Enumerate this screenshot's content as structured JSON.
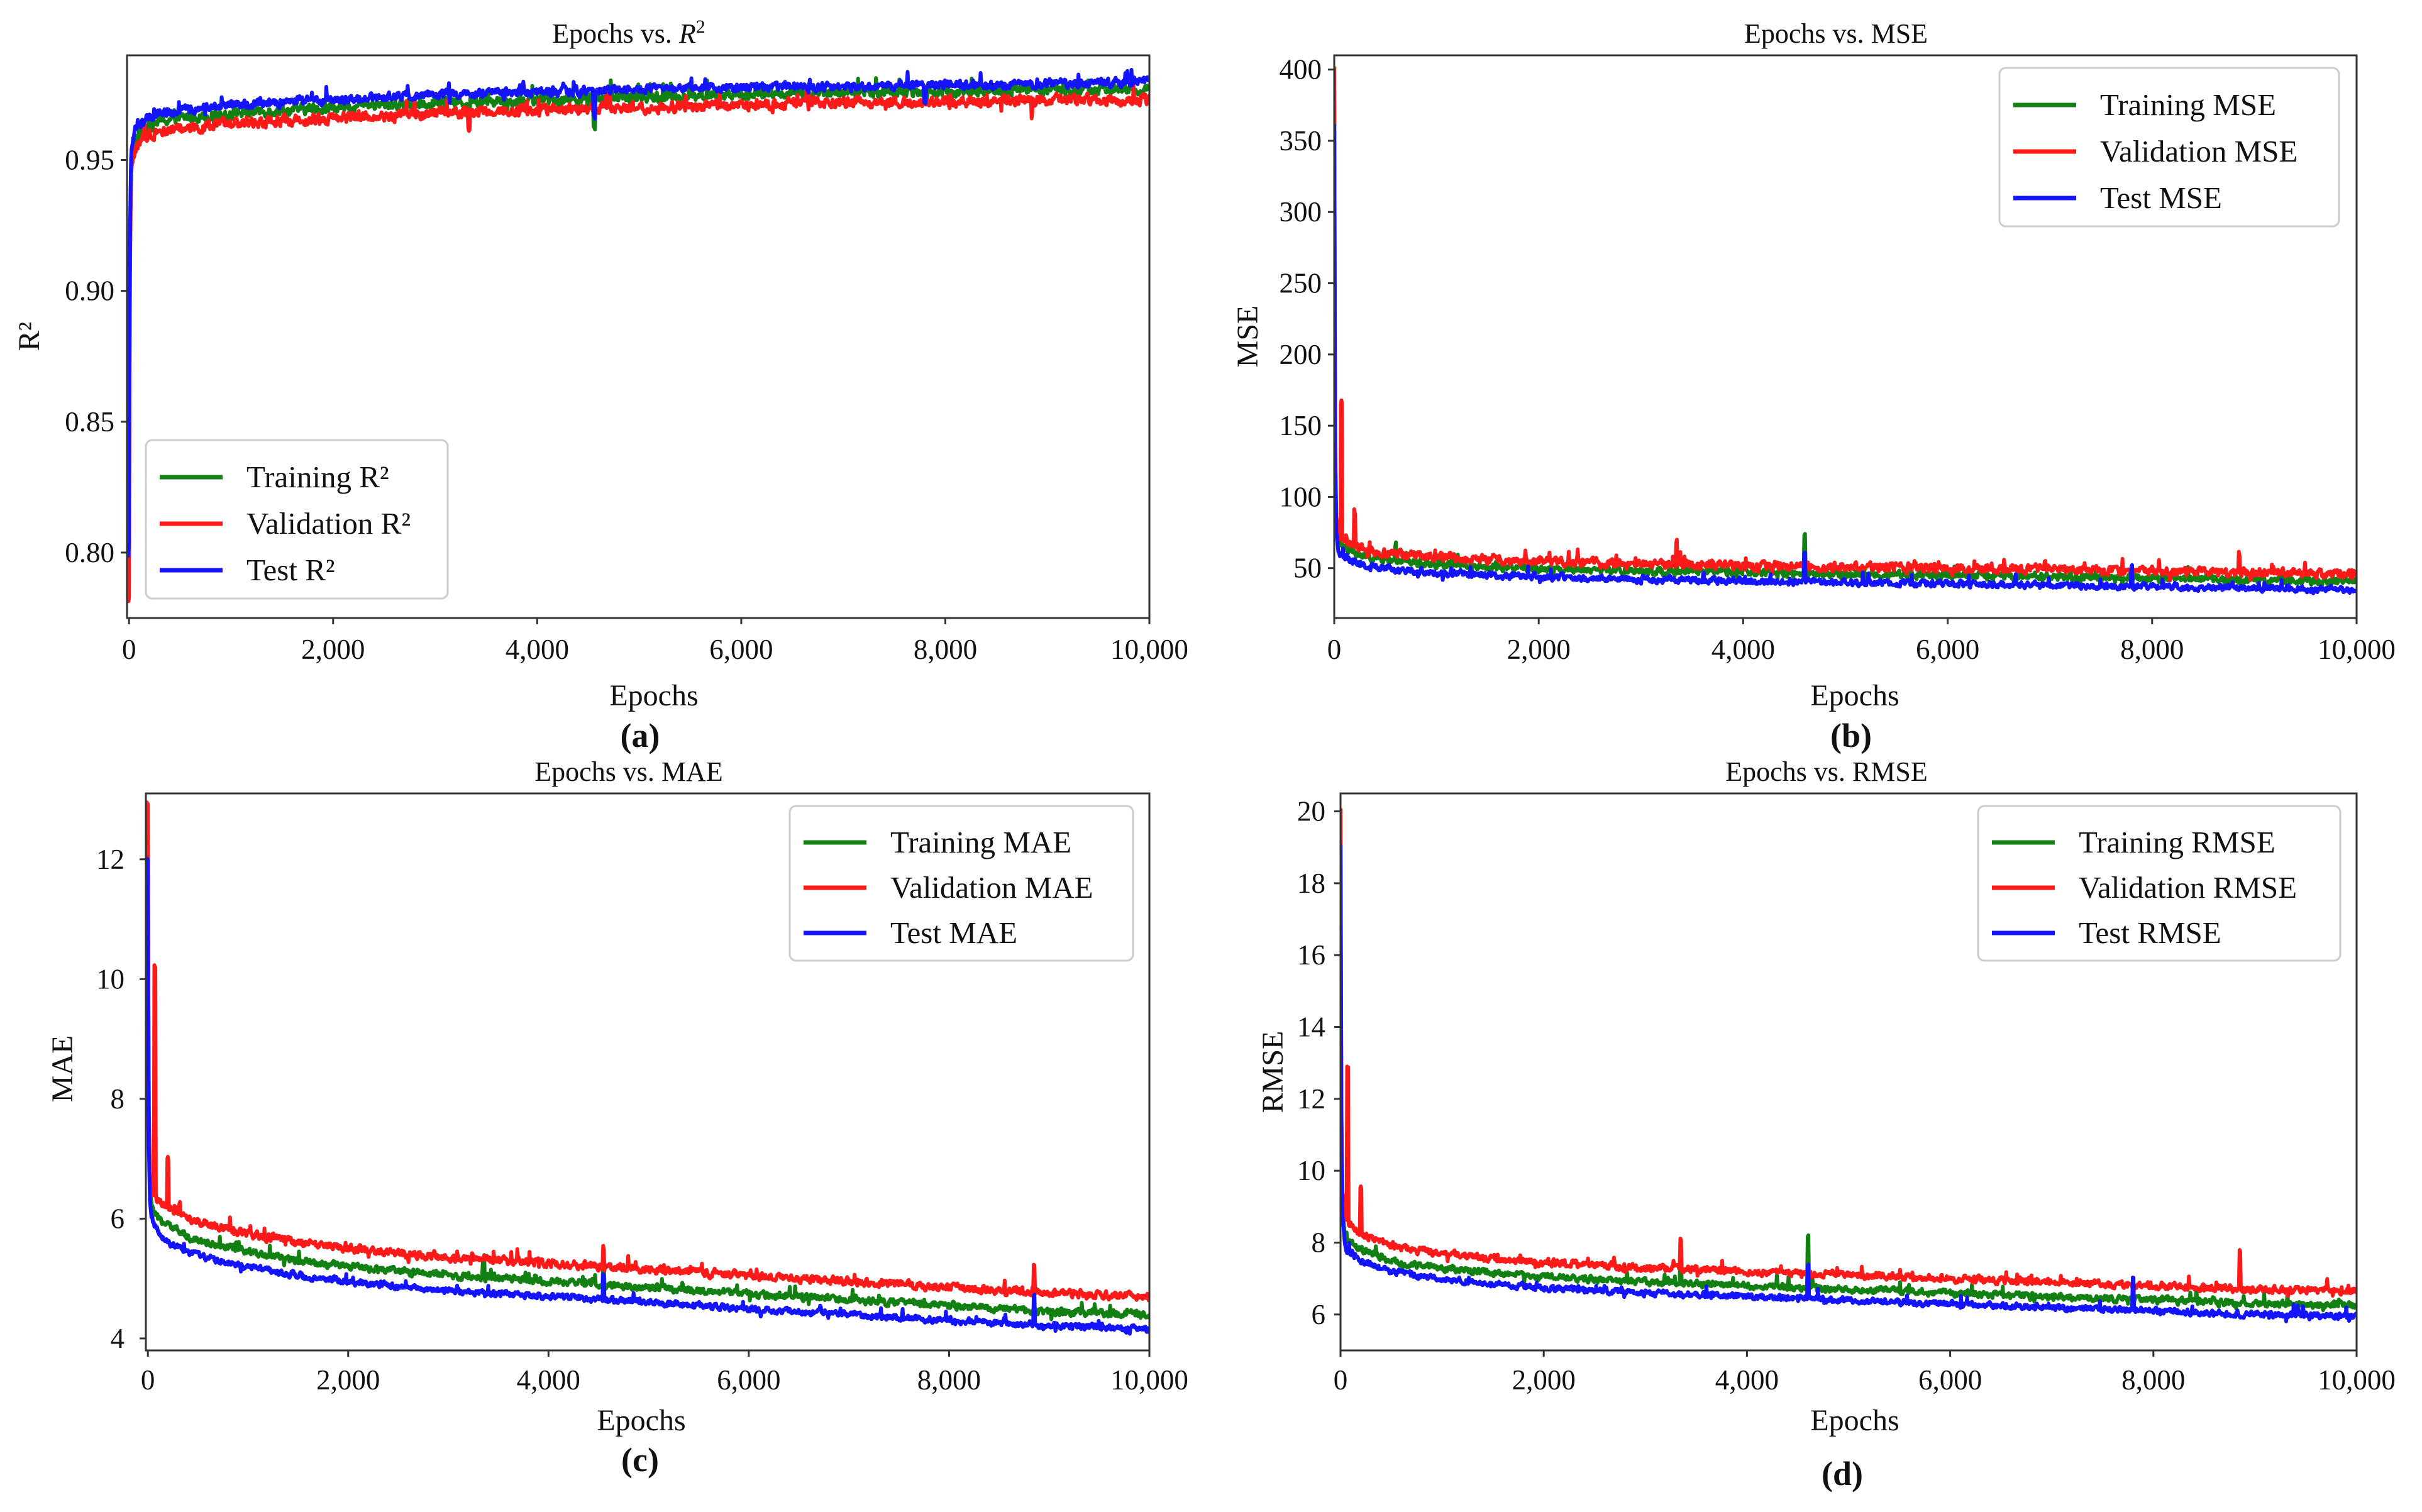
{
  "chart_data": [
    {
      "id": "r2",
      "type": "line",
      "title": "Epochs vs. ",
      "title_math": "R",
      "title_math_sup": "2",
      "xlabel": "Epochs",
      "ylabel": "R²",
      "panel_label": "(a)",
      "xlim": [
        -20,
        10000
      ],
      "ylim": [
        0.775,
        0.99
      ],
      "xticks": [
        0,
        2000,
        4000,
        6000,
        8000,
        10000
      ],
      "xtick_labels": [
        "0",
        "2,000",
        "4,000",
        "6,000",
        "8,000",
        "10,000"
      ],
      "yticks": [
        0.8,
        0.85,
        0.9,
        0.95
      ],
      "ytick_labels": [
        "0.80",
        "0.85",
        "0.90",
        "0.95"
      ],
      "legend_loc": "lower-left",
      "series": [
        {
          "name": "Training R²",
          "color": "#128012",
          "x": [
            0,
            5,
            10,
            20,
            40,
            60,
            100,
            150,
            200,
            300,
            500,
            800,
            1000,
            1500,
            2000,
            3000,
            4000,
            5000,
            6000,
            7000,
            8000,
            9000,
            10000
          ],
          "y": [
            0.8,
            0.88,
            0.92,
            0.948,
            0.955,
            0.958,
            0.96,
            0.962,
            0.963,
            0.965,
            0.966,
            0.967,
            0.968,
            0.969,
            0.97,
            0.972,
            0.973,
            0.974,
            0.975,
            0.976,
            0.976,
            0.977,
            0.977
          ],
          "noise": 0.003,
          "spikes": [
            [
              3330,
              -0.008
            ],
            [
              4560,
              -0.012
            ]
          ]
        },
        {
          "name": "Validation R²",
          "color": "#ff1a1a",
          "x": [
            0,
            5,
            10,
            20,
            40,
            60,
            100,
            150,
            200,
            300,
            500,
            800,
            1000,
            1500,
            2000,
            3000,
            4000,
            5000,
            6000,
            7000,
            8000,
            9000,
            10000
          ],
          "y": [
            0.782,
            0.87,
            0.91,
            0.945,
            0.951,
            0.954,
            0.956,
            0.958,
            0.96,
            0.961,
            0.962,
            0.963,
            0.964,
            0.965,
            0.966,
            0.968,
            0.969,
            0.97,
            0.971,
            0.972,
            0.972,
            0.973,
            0.973
          ],
          "noise": 0.003,
          "spikes": [
            [
              3330,
              -0.008
            ],
            [
              8850,
              -0.006
            ]
          ]
        },
        {
          "name": "Test R²",
          "color": "#1414ff",
          "x": [
            0,
            5,
            10,
            20,
            40,
            60,
            100,
            150,
            200,
            300,
            500,
            800,
            1000,
            1500,
            2000,
            3000,
            4000,
            5000,
            6000,
            7000,
            8000,
            9000,
            10000
          ],
          "y": [
            0.8,
            0.89,
            0.925,
            0.952,
            0.958,
            0.961,
            0.963,
            0.965,
            0.966,
            0.968,
            0.969,
            0.97,
            0.971,
            0.972,
            0.973,
            0.975,
            0.976,
            0.977,
            0.978,
            0.978,
            0.979,
            0.979,
            0.98
          ],
          "noise": 0.0025,
          "spikes": [
            [
              4560,
              -0.01
            ],
            [
              7800,
              -0.008
            ]
          ]
        }
      ]
    },
    {
      "id": "mse",
      "type": "line",
      "title": "Epochs vs. MSE",
      "xlabel": "Epochs",
      "ylabel": "MSE",
      "panel_label": "(b)",
      "xlim": [
        0,
        10000
      ],
      "ylim": [
        15,
        410
      ],
      "xticks": [
        0,
        2000,
        4000,
        6000,
        8000,
        10000
      ],
      "xtick_labels": [
        "0",
        "2,000",
        "4,000",
        "6,000",
        "8,000",
        "10,000"
      ],
      "yticks": [
        50,
        100,
        150,
        200,
        250,
        300,
        350,
        400
      ],
      "ytick_labels": [
        "50",
        "100",
        "150",
        "200",
        "250",
        "300",
        "350",
        "400"
      ],
      "legend_loc": "upper-right",
      "series": [
        {
          "name": "Training MSE",
          "color": "#128012",
          "x": [
            0,
            5,
            10,
            20,
            40,
            60,
            100,
            200,
            400,
            600,
            1000,
            1500,
            2000,
            3000,
            4000,
            5000,
            6000,
            7000,
            8000,
            9000,
            10000
          ],
          "y": [
            390,
            250,
            130,
            80,
            70,
            66,
            64,
            60,
            57,
            55,
            53,
            51,
            50,
            48,
            47,
            46,
            45,
            44,
            43,
            42,
            41
          ],
          "noise": 4,
          "spikes": [
            [
              4600,
              26
            ],
            [
              3350,
              15
            ],
            [
              600,
              12
            ]
          ]
        },
        {
          "name": "Validation MSE",
          "color": "#ff1a1a",
          "x": [
            0,
            5,
            10,
            20,
            40,
            60,
            100,
            200,
            400,
            600,
            1000,
            1500,
            2000,
            3000,
            4000,
            5000,
            6000,
            7000,
            8000,
            9000,
            10000
          ],
          "y": [
            400,
            260,
            140,
            85,
            75,
            72,
            70,
            66,
            62,
            60,
            58,
            56,
            55,
            53,
            52,
            51,
            50,
            49,
            48,
            47,
            46
          ],
          "noise": 4.5,
          "spikes": [
            [
              70,
              95
            ],
            [
              200,
              25
            ],
            [
              3350,
              15
            ],
            [
              8850,
              12
            ]
          ]
        },
        {
          "name": "Test MSE",
          "color": "#1414ff",
          "x": [
            0,
            5,
            10,
            20,
            40,
            60,
            100,
            200,
            400,
            600,
            1000,
            1500,
            2000,
            3000,
            4000,
            5000,
            6000,
            7000,
            8000,
            9000,
            10000
          ],
          "y": [
            360,
            230,
            120,
            75,
            64,
            60,
            58,
            54,
            51,
            49,
            47,
            45,
            44,
            42,
            41,
            40,
            39,
            38,
            37,
            36,
            35
          ],
          "noise": 3.5,
          "spikes": [
            [
              4600,
              18
            ],
            [
              7800,
              14
            ]
          ]
        }
      ]
    },
    {
      "id": "mae",
      "type": "line",
      "title": "Epochs vs. MAE",
      "xlabel": "Epochs",
      "ylabel": "MAE",
      "panel_label": "(c)",
      "xlim": [
        -20,
        10000
      ],
      "ylim": [
        3.8,
        13.1
      ],
      "xticks": [
        0,
        2000,
        4000,
        6000,
        8000,
        10000
      ],
      "xtick_labels": [
        "0",
        "2,000",
        "4,000",
        "6,000",
        "8,000",
        "10,000"
      ],
      "yticks": [
        4,
        6,
        8,
        10,
        12
      ],
      "ytick_labels": [
        "4",
        "6",
        "8",
        "10",
        "12"
      ],
      "legend_loc": "upper-right",
      "series": [
        {
          "name": "Training MAE",
          "color": "#128012",
          "x": [
            0,
            5,
            10,
            20,
            40,
            60,
            100,
            200,
            400,
            600,
            1000,
            1500,
            2000,
            3000,
            4000,
            5000,
            6000,
            7000,
            8000,
            9000,
            10000
          ],
          "y": [
            12.5,
            9.5,
            7.5,
            6.5,
            6.2,
            6.1,
            6.0,
            5.9,
            5.7,
            5.6,
            5.45,
            5.3,
            5.2,
            5.05,
            4.95,
            4.85,
            4.75,
            4.65,
            4.55,
            4.45,
            4.4
          ],
          "noise": 0.09,
          "spikes": [
            [
              3350,
              0.3
            ],
            [
              4550,
              0.4
            ]
          ]
        },
        {
          "name": "Validation MAE",
          "color": "#ff1a1a",
          "x": [
            0,
            5,
            10,
            20,
            40,
            60,
            100,
            200,
            400,
            600,
            1000,
            1500,
            2000,
            3000,
            4000,
            5000,
            6000,
            7000,
            8000,
            9000,
            10000
          ],
          "y": [
            12.9,
            9.8,
            7.8,
            6.8,
            6.5,
            6.4,
            6.3,
            6.2,
            6.0,
            5.9,
            5.75,
            5.6,
            5.5,
            5.35,
            5.25,
            5.15,
            5.05,
            4.95,
            4.85,
            4.75,
            4.7
          ],
          "noise": 0.1,
          "spikes": [
            [
              70,
              3.8
            ],
            [
              200,
              0.8
            ],
            [
              8850,
              0.5
            ],
            [
              4550,
              0.4
            ]
          ]
        },
        {
          "name": "Test MAE",
          "color": "#1414ff",
          "x": [
            0,
            5,
            10,
            20,
            40,
            60,
            100,
            200,
            400,
            600,
            1000,
            1500,
            2000,
            3000,
            4000,
            5000,
            6000,
            7000,
            8000,
            9000,
            10000
          ],
          "y": [
            12.0,
            9.0,
            7.2,
            6.3,
            6.0,
            5.9,
            5.8,
            5.6,
            5.45,
            5.35,
            5.2,
            5.05,
            4.95,
            4.8,
            4.7,
            4.6,
            4.5,
            4.4,
            4.3,
            4.22,
            4.15
          ],
          "noise": 0.08,
          "spikes": [
            [
              4550,
              0.4
            ],
            [
              8850,
              0.5
            ]
          ]
        }
      ]
    },
    {
      "id": "rmse",
      "type": "line",
      "title": "Epochs vs. RMSE",
      "xlabel": "Epochs",
      "ylabel": "RMSE",
      "panel_label": "(d)",
      "xlim": [
        0,
        10000
      ],
      "ylim": [
        5.0,
        20.5
      ],
      "xticks": [
        0,
        2000,
        4000,
        6000,
        8000,
        10000
      ],
      "xtick_labels": [
        "0",
        "2,000",
        "4,000",
        "6,000",
        "8,000",
        "10,000"
      ],
      "yticks": [
        6,
        8,
        10,
        12,
        14,
        16,
        18,
        20
      ],
      "ytick_labels": [
        "6",
        "8",
        "10",
        "12",
        "14",
        "16",
        "18",
        "20"
      ],
      "legend_loc": "upper-right",
      "series": [
        {
          "name": "Training RMSE",
          "color": "#128012",
          "x": [
            0,
            5,
            10,
            20,
            40,
            60,
            100,
            200,
            400,
            600,
            1000,
            1500,
            2000,
            3000,
            4000,
            5000,
            6000,
            7000,
            8000,
            9000,
            10000
          ],
          "y": [
            19.5,
            15.0,
            11.0,
            9.0,
            8.3,
            8.1,
            8.0,
            7.8,
            7.6,
            7.4,
            7.3,
            7.15,
            7.05,
            6.9,
            6.8,
            6.7,
            6.6,
            6.5,
            6.4,
            6.3,
            6.25
          ],
          "noise": 0.14,
          "spikes": [
            [
              4600,
              1.4
            ],
            [
              3350,
              0.9
            ]
          ]
        },
        {
          "name": "Validation RMSE",
          "color": "#ff1a1a",
          "x": [
            0,
            5,
            10,
            20,
            40,
            60,
            100,
            200,
            400,
            600,
            1000,
            1500,
            2000,
            3000,
            4000,
            5000,
            6000,
            7000,
            8000,
            9000,
            10000
          ],
          "y": [
            20.0,
            15.5,
            11.5,
            9.5,
            8.8,
            8.6,
            8.45,
            8.25,
            8.0,
            7.85,
            7.7,
            7.55,
            7.45,
            7.3,
            7.2,
            7.1,
            7.0,
            6.9,
            6.8,
            6.7,
            6.65
          ],
          "noise": 0.15,
          "spikes": [
            [
              70,
              4.3
            ],
            [
              200,
              1.3
            ],
            [
              3350,
              0.9
            ],
            [
              8850,
              1.0
            ]
          ]
        },
        {
          "name": "Test RMSE",
          "color": "#1414ff",
          "x": [
            0,
            5,
            10,
            20,
            40,
            60,
            100,
            200,
            400,
            600,
            1000,
            1500,
            2000,
            3000,
            4000,
            5000,
            6000,
            7000,
            8000,
            9000,
            10000
          ],
          "y": [
            19.0,
            14.5,
            10.5,
            8.7,
            8.0,
            7.8,
            7.7,
            7.5,
            7.3,
            7.15,
            7.0,
            6.85,
            6.75,
            6.6,
            6.5,
            6.4,
            6.3,
            6.2,
            6.1,
            6.0,
            5.95
          ],
          "noise": 0.13,
          "spikes": [
            [
              4600,
              0.9
            ],
            [
              7800,
              0.8
            ]
          ]
        }
      ]
    }
  ]
}
